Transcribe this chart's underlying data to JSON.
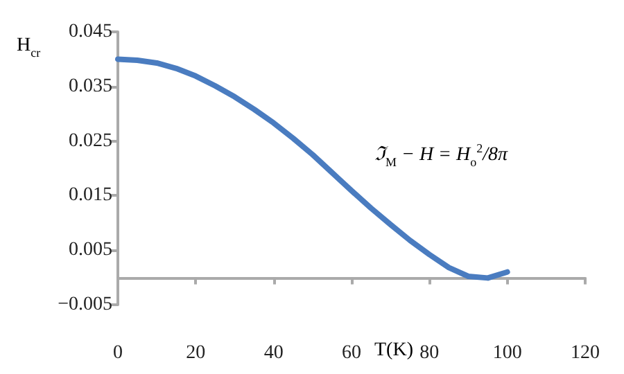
{
  "chart_data": {
    "type": "line",
    "xlabel": "T(K)",
    "ylabel": "H$_{cr}$",
    "annotations": [
      "ℑ$_{M}$ − H = H$_{o}$$^{2}$/8π"
    ],
    "x": [
      0,
      5,
      10,
      15,
      20,
      25,
      30,
      35,
      40,
      45,
      50,
      55,
      60,
      65,
      70,
      75,
      80,
      85,
      90,
      95,
      100
    ],
    "series": [
      {
        "color": "#4a7cc0",
        "values": [
          0.04,
          0.0398,
          0.0393,
          0.0383,
          0.0369,
          0.0351,
          0.0331,
          0.0308,
          0.0283,
          0.0255,
          0.0225,
          0.0192,
          0.0159,
          0.0127,
          0.0097,
          0.0068,
          0.0042,
          0.0018,
          0.0002,
          -0.0001,
          0.001
        ]
      }
    ],
    "xlim": [
      0,
      120
    ],
    "xticks": [
      0,
      20,
      40,
      60,
      80,
      100,
      120
    ],
    "ylim": [
      -0.005,
      0.045
    ],
    "yticks": [
      -0.005,
      0.005,
      0.015,
      0.025,
      0.035,
      0.045
    ],
    "grid": false,
    "marker": "none",
    "line_style": "solid"
  }
}
